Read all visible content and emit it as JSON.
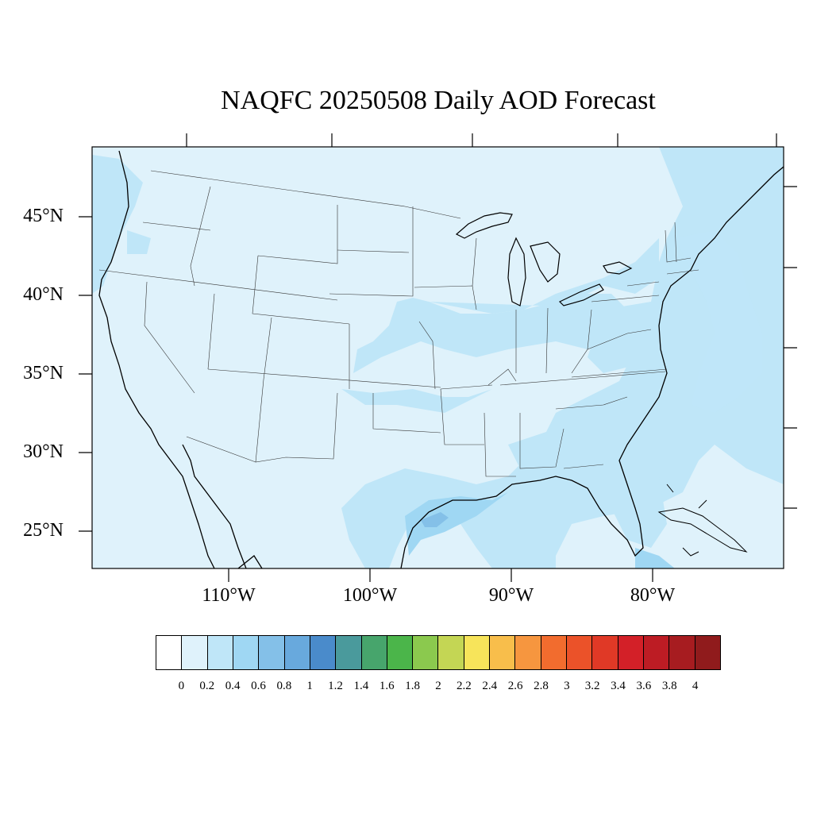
{
  "title": "NAQFC 20250508 Daily AOD Forecast",
  "lat_labels": [
    "45°N",
    "40°N",
    "35°N",
    "30°N",
    "25°N"
  ],
  "lon_labels": [
    "110°W",
    "100°W",
    "90°W",
    "80°W"
  ],
  "colorbar": {
    "colors": [
      "#ffffff",
      "#dff2fb",
      "#bfe6f8",
      "#9fd7f3",
      "#84c0e8",
      "#68a9dd",
      "#4a8bcb",
      "#4a9a9c",
      "#47a56c",
      "#4bb54a",
      "#8bc94e",
      "#c4d654",
      "#f7e45a",
      "#f8be4b",
      "#f6963f",
      "#f26c2e",
      "#eb5229",
      "#e03926",
      "#d32028",
      "#bd1c24",
      "#a71c20",
      "#901b1c"
    ],
    "labels": [
      "0",
      "0.2",
      "0.4",
      "0.6",
      "0.8",
      "1",
      "1.2",
      "1.4",
      "1.6",
      "1.8",
      "2",
      "2.2",
      "2.4",
      "2.6",
      "2.8",
      "3",
      "3.2",
      "3.4",
      "3.6",
      "3.8",
      "4"
    ]
  },
  "map": {
    "background_color": "#dff2fb",
    "aod_light_color": "#bfe6f8",
    "aod_mid_color": "#9fd7f3",
    "aod_high_color": "#84c0e8",
    "line_color": "#000000"
  }
}
